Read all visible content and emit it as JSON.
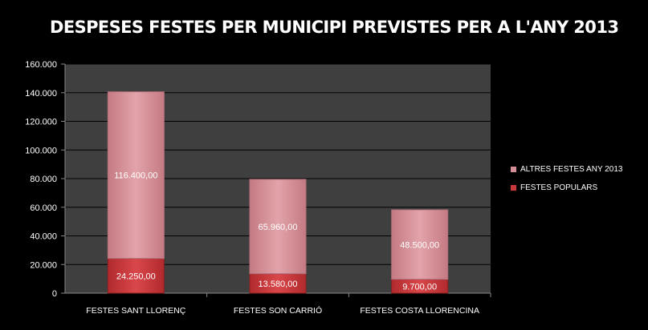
{
  "chart_data": {
    "type": "bar",
    "stacked": true,
    "title": "DESPESES FESTES PER MUNICIPI PREVISTES PER A L'ANY 2013",
    "categories": [
      "FESTES SANT LLORENÇ",
      "FESTES SON CARRIÓ",
      "FESTES COSTA LLORENCINA"
    ],
    "series": [
      {
        "name": "FESTES POPULARS",
        "values": [
          24250,
          13580,
          9700
        ],
        "labels": [
          "24.250,00",
          "13.580,00",
          "9.700,00"
        ],
        "color": "#c8393b"
      },
      {
        "name": "ALTRES FESTES  ANY 2013",
        "values": [
          116400,
          65960,
          48500
        ],
        "labels": [
          "116.400,00",
          "65.960,00",
          "48.500,00"
        ],
        "color": "#d58e95"
      }
    ],
    "ylim": [
      0,
      160000
    ],
    "yticks": [
      0,
      20000,
      40000,
      60000,
      80000,
      100000,
      120000,
      140000,
      160000
    ],
    "ytick_labels": [
      "0",
      "20.000",
      "40.000",
      "60.000",
      "80.000",
      "100.000",
      "120.000",
      "140.000",
      "160.000"
    ],
    "grid": true,
    "legend_position": "right",
    "plot_background": "#3f3f3f",
    "gridline_color": "#000000"
  }
}
